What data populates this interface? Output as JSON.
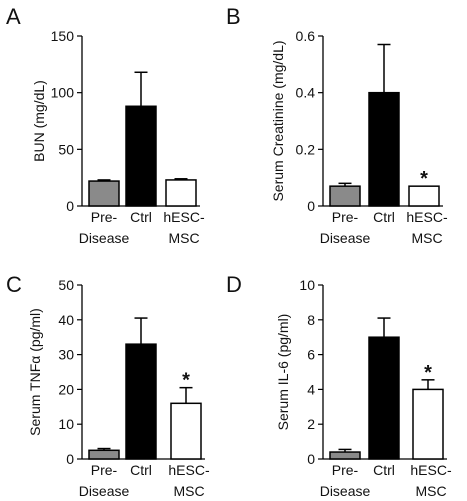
{
  "figure": {
    "bar_colors": [
      "#8a8a8a",
      "#000000",
      "#ffffff"
    ],
    "bar_stroke": "#000000",
    "categories": [
      [
        "Pre-",
        "Disease"
      ],
      [
        "Ctrl"
      ],
      [
        "hESC-",
        "MSC"
      ]
    ]
  },
  "chart_data": [
    {
      "panel": "A",
      "type": "bar",
      "categories": [
        "Pre-Disease",
        "Ctrl",
        "hESC-MSC"
      ],
      "values": [
        22,
        88,
        23
      ],
      "errors": [
        1,
        30,
        1
      ],
      "significance": [
        "",
        "",
        ""
      ],
      "ylabel": "BUN (mg/dL)",
      "ylim": [
        0,
        150
      ],
      "yticks": [
        "0",
        "50",
        "100",
        "150"
      ],
      "grid": false
    },
    {
      "panel": "B",
      "type": "bar",
      "categories": [
        "Pre-Disease",
        "Ctrl",
        "hESC-MSC"
      ],
      "values": [
        0.07,
        0.4,
        0.07
      ],
      "errors": [
        0.01,
        0.17,
        0.0
      ],
      "significance": [
        "",
        "",
        "*"
      ],
      "ylabel": "Serum Creatinine (mg/dL)",
      "ylim": [
        0,
        0.65
      ],
      "yticks": [
        "0",
        "0.2",
        "0.4",
        "0.6"
      ],
      "grid": false
    },
    {
      "panel": "C",
      "type": "bar",
      "categories": [
        "Pre-Disease",
        "Ctrl",
        "hESC-MSC"
      ],
      "values": [
        2.5,
        33,
        16
      ],
      "errors": [
        0.5,
        7.5,
        4.5
      ],
      "significance": [
        "",
        "",
        "*"
      ],
      "ylabel": "Serum TNFα (pg/ml)",
      "ylim": [
        0,
        50
      ],
      "yticks": [
        "0",
        "10",
        "20",
        "30",
        "40",
        "50"
      ],
      "grid": false
    },
    {
      "panel": "D",
      "type": "bar",
      "categories": [
        "Pre-Disease",
        "Ctrl",
        "hESC-MSC"
      ],
      "values": [
        0.4,
        7.0,
        4.0
      ],
      "errors": [
        0.15,
        1.1,
        0.55
      ],
      "significance": [
        "",
        "",
        "*"
      ],
      "ylabel": "Serum IL-6 (pg/ml)",
      "ylim": [
        0,
        10
      ],
      "yticks": [
        "0",
        "2",
        "4",
        "6",
        "8",
        "10"
      ],
      "grid": false
    }
  ]
}
